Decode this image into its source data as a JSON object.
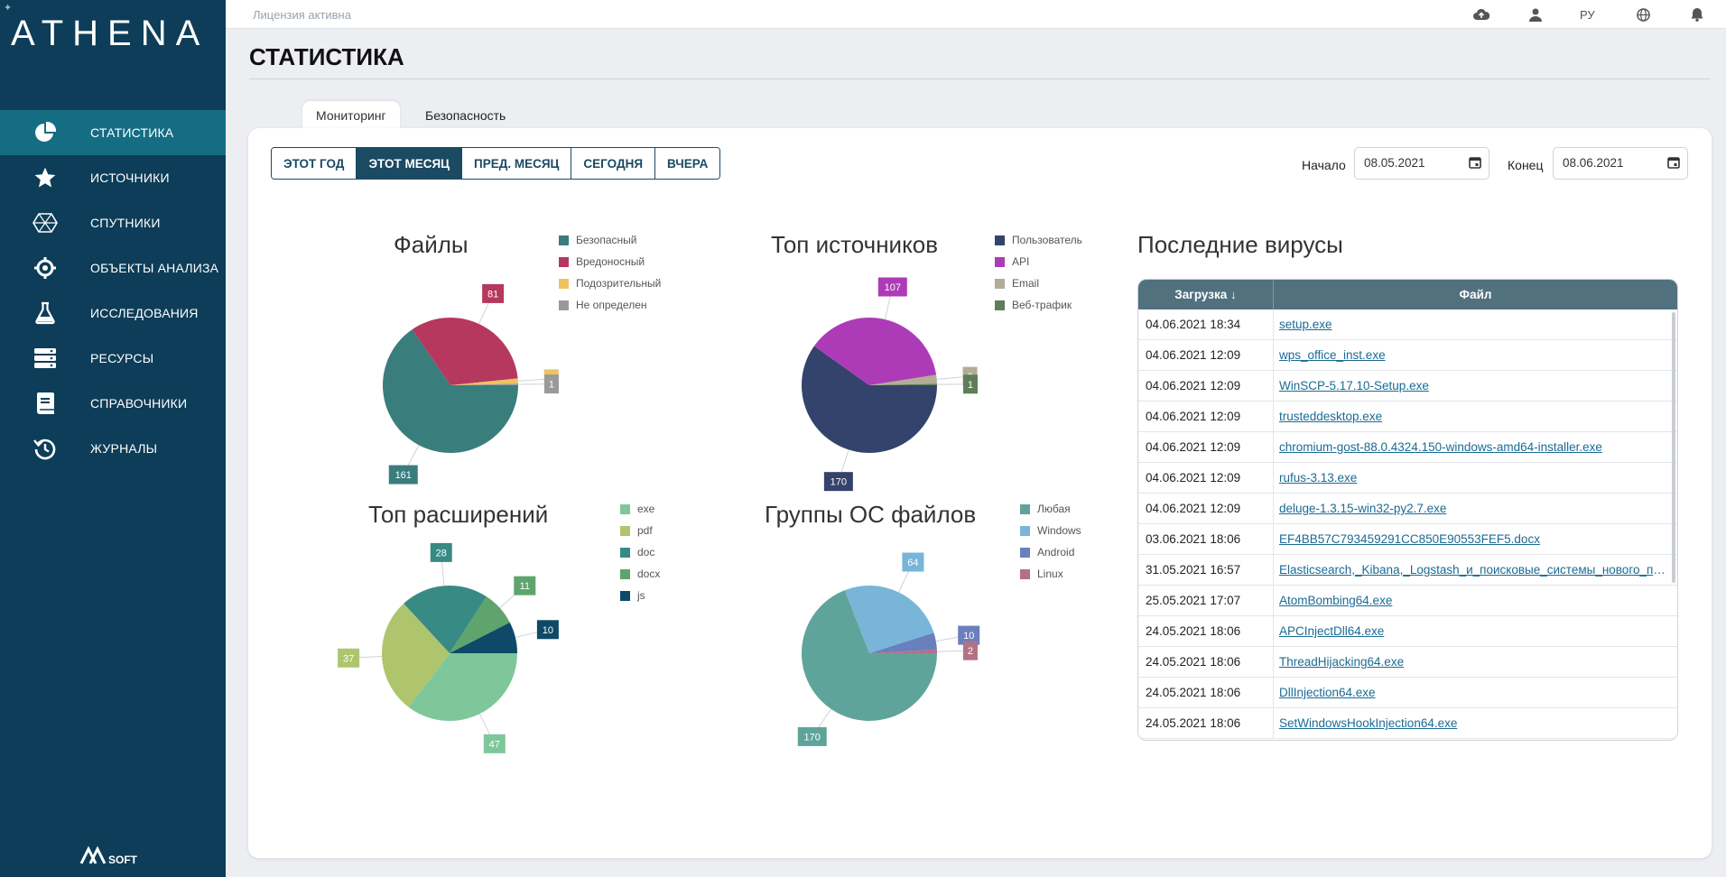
{
  "app": {
    "logo_text": "ATHENA",
    "brand_text": "AVSOFT",
    "license": "Лицензия активна"
  },
  "topbar": {
    "lang": "РУ"
  },
  "sidebar": {
    "items": [
      {
        "label": "СТАТИСТИКА",
        "icon": "pie-chart-icon",
        "active": true
      },
      {
        "label": "ИСТОЧНИКИ",
        "icon": "star-icon"
      },
      {
        "label": "СПУТНИКИ",
        "icon": "satellite-icon"
      },
      {
        "label": "ОБЪЕКТЫ АНАЛИЗА",
        "icon": "crosshair-icon"
      },
      {
        "label": "ИССЛЕДОВАНИЯ",
        "icon": "flask-icon"
      },
      {
        "label": "РЕСУРСЫ",
        "icon": "server-icon"
      },
      {
        "label": "СПРАВОЧНИКИ",
        "icon": "book-icon"
      },
      {
        "label": "ЖУРНАЛЫ",
        "icon": "history-icon"
      }
    ]
  },
  "page": {
    "title": "СТАТИСТИКА"
  },
  "tabs": [
    {
      "label": "Мониторинг",
      "active": true
    },
    {
      "label": "Безопасность"
    }
  ],
  "periods": [
    {
      "label": "ЭТОТ ГОД"
    },
    {
      "label": "ЭТОТ МЕСЯЦ",
      "active": true
    },
    {
      "label": "ПРЕД. МЕСЯЦ"
    },
    {
      "label": "СЕГОДНЯ"
    },
    {
      "label": "ВЧЕРА"
    }
  ],
  "dates": {
    "start_label": "Начало",
    "start_value": "08.05.2021",
    "end_label": "Конец",
    "end_value": "08.06.2021"
  },
  "chart_data": [
    {
      "type": "pie",
      "title": "Файлы",
      "categories": [
        "Безопасный",
        "Вредоносный",
        "Подозрительный",
        "Не определен"
      ],
      "values": [
        161,
        81,
        3,
        1
      ],
      "colors": [
        "#3a7d7d",
        "#b6385e",
        "#eec35e",
        "#9a9a9a"
      ],
      "legend": "right"
    },
    {
      "type": "pie",
      "title": "Топ источников",
      "categories": [
        "Пользователь",
        "API",
        "Email",
        "Веб-трафик"
      ],
      "values": [
        170,
        107,
        6,
        1
      ],
      "colors": [
        "#34436b",
        "#ad3bb8",
        "#b1ad96",
        "#5e7e5a"
      ],
      "legend": "right"
    },
    {
      "type": "pie",
      "title": "Топ расширений",
      "categories": [
        "exe",
        "pdf",
        "doc",
        "docx",
        "js"
      ],
      "values": [
        47,
        37,
        28,
        11,
        10
      ],
      "colors": [
        "#7ec79a",
        "#aec56d",
        "#388a84",
        "#5fa46c",
        "#0e4968"
      ],
      "legend": "right"
    },
    {
      "type": "pie",
      "title": "Группы ОС файлов",
      "categories": [
        "Любая",
        "Windows",
        "Android",
        "Linux"
      ],
      "values": [
        170,
        64,
        10,
        2
      ],
      "colors": [
        "#5fa49a",
        "#78b5d9",
        "#6a7fbd",
        "#b27184"
      ],
      "legend": "right"
    }
  ],
  "viruses": {
    "title": "Последние вирусы",
    "columns": [
      "Загрузка",
      "Файл"
    ],
    "rows": [
      {
        "date": "04.06.2021 18:34",
        "file": "setup.exe"
      },
      {
        "date": "04.06.2021 12:09",
        "file": "wps_office_inst.exe"
      },
      {
        "date": "04.06.2021 12:09",
        "file": "WinSCP-5.17.10-Setup.exe"
      },
      {
        "date": "04.06.2021 12:09",
        "file": "trusteddesktop.exe"
      },
      {
        "date": "04.06.2021 12:09",
        "file": "chromium-gost-88.0.4324.150-windows-amd64-installer.exe"
      },
      {
        "date": "04.06.2021 12:09",
        "file": "rufus-3.13.exe"
      },
      {
        "date": "04.06.2021 12:09",
        "file": "deluge-1.3.15-win32-py2.7.exe"
      },
      {
        "date": "03.06.2021 18:06",
        "file": "EF4BB57C793459291CC850E90553FEF5.docx"
      },
      {
        "date": "31.05.2021 16:57",
        "file": "Elasticsearch,_Kibana,_Logstash_и_поисковые_системы_нового_поколения.pdf"
      },
      {
        "date": "25.05.2021 17:07",
        "file": "AtomBombing64.exe"
      },
      {
        "date": "24.05.2021 18:06",
        "file": "APCInjectDll64.exe"
      },
      {
        "date": "24.05.2021 18:06",
        "file": "ThreadHijacking64.exe"
      },
      {
        "date": "24.05.2021 18:06",
        "file": "DllInjection64.exe"
      },
      {
        "date": "24.05.2021 18:06",
        "file": "SetWindowsHookInjection64.exe"
      }
    ]
  }
}
